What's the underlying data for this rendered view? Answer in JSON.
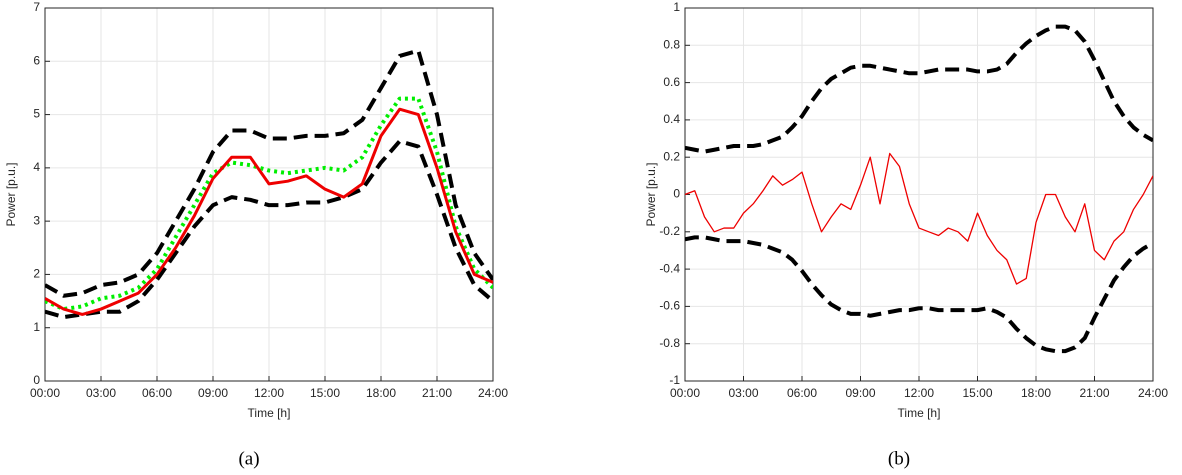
{
  "chart_data": [
    {
      "type": "line",
      "xlabel": "Time [h]",
      "ylabel": "Power [p.u.]",
      "caption": "(a)",
      "grid": true,
      "x": [
        0,
        1,
        2,
        3,
        4,
        5,
        6,
        7,
        8,
        9,
        10,
        11,
        12,
        13,
        14,
        15,
        16,
        17,
        18,
        19,
        20,
        21,
        22,
        23,
        24
      ],
      "xlim": [
        0,
        24
      ],
      "xticks": [
        {
          "value": 0,
          "label": "00:00"
        },
        {
          "value": 3,
          "label": "03:00"
        },
        {
          "value": 6,
          "label": "06:00"
        },
        {
          "value": 9,
          "label": "09:00"
        },
        {
          "value": 12,
          "label": "12:00"
        },
        {
          "value": 15,
          "label": "15:00"
        },
        {
          "value": 18,
          "label": "18:00"
        },
        {
          "value": 21,
          "label": "21:00"
        },
        {
          "value": 24,
          "label": "24:00"
        }
      ],
      "ylim": [
        0,
        7
      ],
      "yticks": [
        0,
        1,
        2,
        3,
        4,
        5,
        6,
        7
      ],
      "series": [
        {
          "color": "#000000",
          "style": "dashed",
          "width": 4,
          "values": [
            1.8,
            1.6,
            1.65,
            1.8,
            1.85,
            2.0,
            2.4,
            3.0,
            3.6,
            4.3,
            4.7,
            4.7,
            4.55,
            4.55,
            4.6,
            4.6,
            4.65,
            4.9,
            5.5,
            6.1,
            6.2,
            5.0,
            3.3,
            2.4,
            1.9
          ]
        },
        {
          "color": "#000000",
          "style": "dashed",
          "width": 4,
          "values": [
            1.3,
            1.2,
            1.25,
            1.3,
            1.3,
            1.5,
            1.9,
            2.4,
            2.9,
            3.3,
            3.45,
            3.4,
            3.3,
            3.3,
            3.35,
            3.35,
            3.45,
            3.6,
            4.1,
            4.5,
            4.4,
            3.5,
            2.5,
            1.8,
            1.5
          ]
        },
        {
          "color": "#00ee00",
          "style": "dotted",
          "width": 4,
          "values": [
            1.5,
            1.35,
            1.4,
            1.55,
            1.6,
            1.75,
            2.1,
            2.7,
            3.3,
            3.9,
            4.1,
            4.05,
            3.95,
            3.9,
            3.95,
            4.0,
            3.95,
            4.2,
            4.8,
            5.3,
            5.3,
            4.3,
            2.9,
            2.1,
            1.75
          ]
        },
        {
          "color": "#ee0000",
          "style": "solid",
          "width": 3,
          "values": [
            1.55,
            1.35,
            1.25,
            1.35,
            1.5,
            1.65,
            2.0,
            2.5,
            3.1,
            3.8,
            4.2,
            4.2,
            3.7,
            3.75,
            3.85,
            3.6,
            3.45,
            3.7,
            4.6,
            5.1,
            5.0,
            4.0,
            2.8,
            2.0,
            1.85
          ]
        }
      ]
    },
    {
      "type": "line",
      "xlabel": "Time [h]",
      "ylabel": "Power [p.u.]",
      "caption": "(b)",
      "grid": true,
      "x": [
        0,
        0.5,
        1,
        1.5,
        2,
        2.5,
        3,
        3.5,
        4,
        4.5,
        5,
        5.5,
        6,
        6.5,
        7,
        7.5,
        8,
        8.5,
        9,
        9.5,
        10,
        10.5,
        11,
        11.5,
        12,
        12.5,
        13,
        13.5,
        14,
        14.5,
        15,
        15.5,
        16,
        16.5,
        17,
        17.5,
        18,
        18.5,
        19,
        19.5,
        20,
        20.5,
        21,
        21.5,
        22,
        22.5,
        23,
        23.5,
        24
      ],
      "xlim": [
        0,
        24
      ],
      "xticks": [
        {
          "value": 0,
          "label": "00:00"
        },
        {
          "value": 3,
          "label": "03:00"
        },
        {
          "value": 6,
          "label": "06:00"
        },
        {
          "value": 9,
          "label": "09:00"
        },
        {
          "value": 12,
          "label": "12:00"
        },
        {
          "value": 15,
          "label": "15:00"
        },
        {
          "value": 18,
          "label": "18:00"
        },
        {
          "value": 21,
          "label": "21:00"
        },
        {
          "value": 24,
          "label": "24:00"
        }
      ],
      "ylim": [
        -1,
        1
      ],
      "yticks": [
        -1,
        -0.8,
        -0.6,
        -0.4,
        -0.2,
        0,
        0.2,
        0.4,
        0.6,
        0.8,
        1
      ],
      "series": [
        {
          "color": "#000000",
          "style": "dashed",
          "width": 4,
          "values": [
            0.25,
            0.24,
            0.23,
            0.24,
            0.25,
            0.26,
            0.26,
            0.26,
            0.27,
            0.29,
            0.31,
            0.36,
            0.42,
            0.5,
            0.57,
            0.62,
            0.65,
            0.68,
            0.69,
            0.69,
            0.68,
            0.67,
            0.66,
            0.65,
            0.65,
            0.66,
            0.67,
            0.67,
            0.67,
            0.67,
            0.66,
            0.66,
            0.67,
            0.7,
            0.76,
            0.81,
            0.85,
            0.88,
            0.9,
            0.9,
            0.88,
            0.82,
            0.72,
            0.61,
            0.5,
            0.42,
            0.36,
            0.32,
            0.29
          ]
        },
        {
          "color": "#000000",
          "style": "dashed",
          "width": 4,
          "values": [
            -0.24,
            -0.23,
            -0.23,
            -0.24,
            -0.25,
            -0.25,
            -0.25,
            -0.26,
            -0.27,
            -0.29,
            -0.31,
            -0.35,
            -0.41,
            -0.48,
            -0.54,
            -0.59,
            -0.62,
            -0.64,
            -0.64,
            -0.65,
            -0.64,
            -0.63,
            -0.62,
            -0.62,
            -0.61,
            -0.61,
            -0.62,
            -0.62,
            -0.62,
            -0.62,
            -0.62,
            -0.61,
            -0.63,
            -0.66,
            -0.72,
            -0.77,
            -0.81,
            -0.83,
            -0.84,
            -0.84,
            -0.82,
            -0.77,
            -0.66,
            -0.56,
            -0.46,
            -0.39,
            -0.33,
            -0.29,
            -0.26
          ]
        },
        {
          "color": "#ee0000",
          "style": "solid",
          "width": 1.3,
          "values": [
            0.0,
            0.02,
            -0.12,
            -0.2,
            -0.18,
            -0.18,
            -0.1,
            -0.05,
            0.02,
            0.1,
            0.05,
            0.08,
            0.12,
            -0.05,
            -0.2,
            -0.12,
            -0.05,
            -0.08,
            0.05,
            0.2,
            -0.05,
            0.22,
            0.15,
            -0.05,
            -0.18,
            -0.2,
            -0.22,
            -0.18,
            -0.2,
            -0.25,
            -0.1,
            -0.22,
            -0.3,
            -0.35,
            -0.48,
            -0.45,
            -0.15,
            0.0,
            0.0,
            -0.12,
            -0.2,
            -0.05,
            -0.3,
            -0.35,
            -0.25,
            -0.2,
            -0.08,
            0.0,
            0.1
          ]
        }
      ]
    }
  ]
}
